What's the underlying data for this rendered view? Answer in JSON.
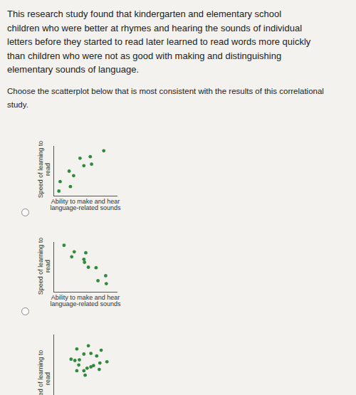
{
  "document": {
    "paragraph_lines": [
      "This research study found that kindergarten and elementary school",
      "children who were better at rhymes and hearing the sounds of individual",
      "letters before they started to read later learned to read words more quickly",
      "than children who were not as good with making and distinguishing",
      "elementary sounds of language."
    ],
    "instruction_lines": [
      "Choose the scatterplot below that is most consistent with the results of this correlational",
      "study."
    ]
  },
  "chart_data": [
    {
      "type": "scatter",
      "x_label": "Ability to make and hear language-related sounds",
      "y_label": "Speed of learning to read",
      "color": "#2f8a3c",
      "tick_labels": false,
      "xlim": [
        0,
        10
      ],
      "ylim": [
        0,
        10
      ],
      "x": [
        0.8,
        2.6,
        1.0,
        3.1,
        2.4,
        4.7,
        5.9,
        5.7,
        4.1,
        7.8
      ],
      "values": [
        1.0,
        1.9,
        2.9,
        4.1,
        5.0,
        6.1,
        6.4,
        7.9,
        7.6,
        9.1
      ]
    },
    {
      "type": "scatter",
      "x_label": "Ability to make and hear language-related sounds",
      "y_label": "Speed of learning to read",
      "color": "#2f8a3c",
      "tick_labels": false,
      "xlim": [
        0,
        10
      ],
      "ylim": [
        0,
        10
      ],
      "x": [
        1.6,
        3.2,
        5.0,
        2.8,
        4.7,
        5.4,
        6.6,
        8.1,
        6.9,
        8.2,
        4.8
      ],
      "values": [
        9.4,
        8.1,
        7.9,
        7.1,
        6.6,
        5.0,
        4.9,
        3.3,
        2.3,
        1.7,
        6.0
      ]
    },
    {
      "type": "scatter",
      "y_label": "Speed of learning to read",
      "color": "#2f8a3c",
      "tick_labels": false,
      "xlim": [
        0,
        10
      ],
      "ylim": [
        0,
        10
      ],
      "x": [
        5.4,
        3.6,
        7.4,
        4.7,
        5.8,
        6.7,
        2.7,
        4.0,
        8.3,
        7.2,
        6.2,
        5.2,
        3.6,
        4.7,
        5.8,
        7.1,
        4.9,
        3.3,
        3.9
      ],
      "values": [
        8.3,
        7.8,
        7.6,
        7.0,
        7.1,
        6.7,
        6.2,
        6.1,
        5.8,
        5.6,
        5.2,
        4.8,
        4.4,
        4.4,
        5.0,
        4.6,
        3.7,
        6.0,
        5.3
      ]
    }
  ]
}
